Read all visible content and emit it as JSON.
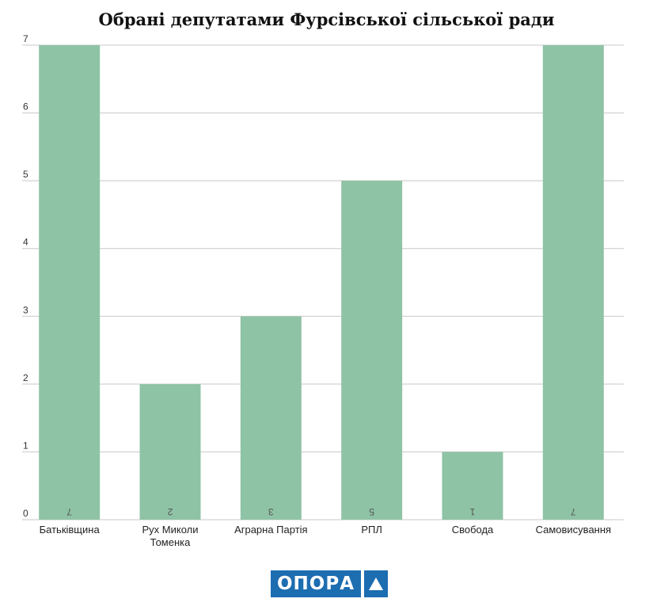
{
  "chart_data": {
    "type": "bar",
    "title": "Обрані депутатами Фурсівської сільської ради",
    "categories": [
      [
        "Батьківщина"
      ],
      [
        "Рух Миколи",
        "Томенка"
      ],
      [
        "Аграрна Партія"
      ],
      [
        "РПЛ"
      ],
      [
        "Свобода"
      ],
      [
        "Самовисування"
      ]
    ],
    "values": [
      7,
      2,
      3,
      5,
      1,
      7
    ],
    "ylim": [
      0,
      7
    ],
    "yticks": [
      0,
      1,
      2,
      3,
      4,
      5,
      6,
      7
    ],
    "grid": true,
    "bar_color": "#8fc3a6",
    "data_labels_rotated": true
  },
  "logo": {
    "text": "ОПОРА",
    "color": "#1d6db1"
  }
}
